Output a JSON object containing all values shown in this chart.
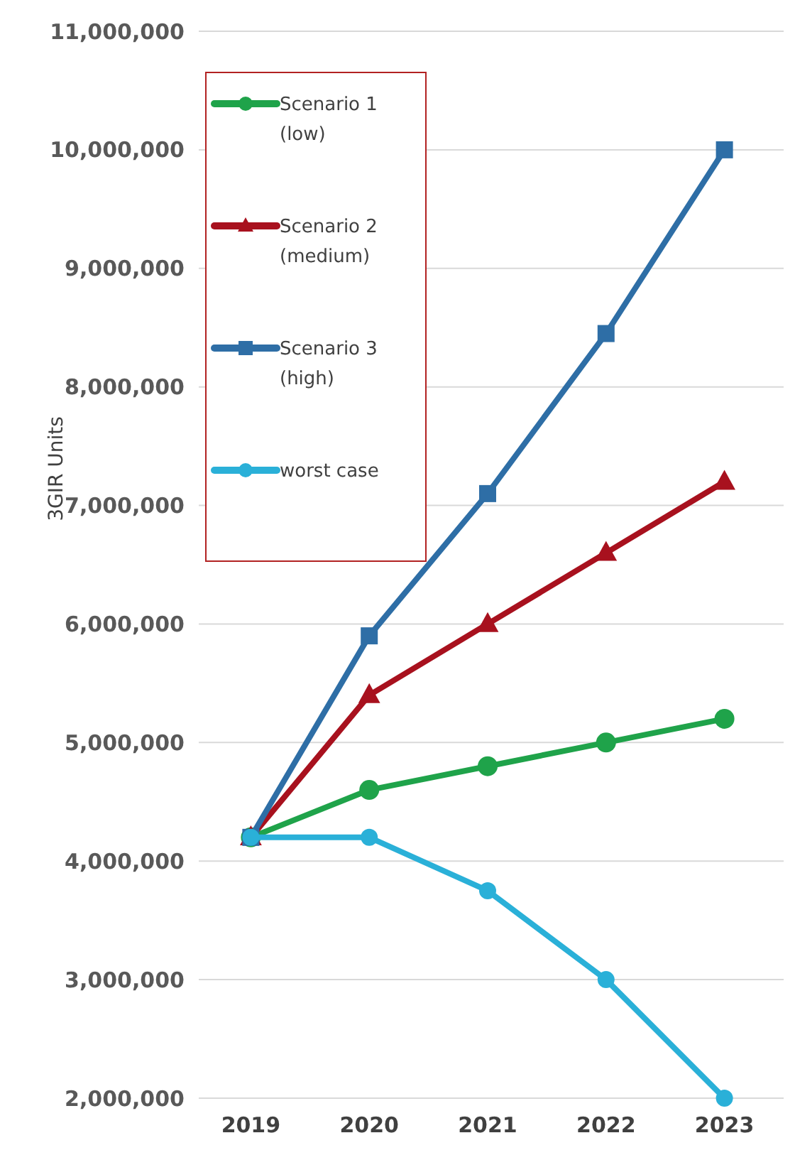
{
  "chart_data": {
    "type": "line",
    "ylabel": "3GIR Units",
    "categories": [
      "2019",
      "2020",
      "2021",
      "2022",
      "2023"
    ],
    "series": [
      {
        "name": "Scenario 1 (low)",
        "color": "#1fa34a",
        "marker": "circle",
        "values": [
          4200000,
          4600000,
          4800000,
          5000000,
          5200000
        ]
      },
      {
        "name": "Scenario 2 (medium)",
        "color": "#a8111e",
        "marker": "triangle",
        "values": [
          4200000,
          5400000,
          6000000,
          6600000,
          7200000
        ]
      },
      {
        "name": "Scenario 3 (high)",
        "color": "#2e6ea6",
        "marker": "square",
        "values": [
          4200000,
          5900000,
          7100000,
          8450000,
          10000000
        ]
      },
      {
        "name": "worst case",
        "color": "#2ab0d8",
        "marker": "circle",
        "values": [
          4200000,
          4200000,
          3750000,
          3000000,
          2000000
        ]
      }
    ],
    "ylim": [
      2000000,
      11000000
    ],
    "yticks": [
      {
        "value": 2000000,
        "label": "2,000,000"
      },
      {
        "value": 3000000,
        "label": "3,000,000"
      },
      {
        "value": 4000000,
        "label": "4,000,000"
      },
      {
        "value": 5000000,
        "label": "5,000,000"
      },
      {
        "value": 6000000,
        "label": "6,000,000"
      },
      {
        "value": 7000000,
        "label": "7,000,000"
      },
      {
        "value": 8000000,
        "label": "8,000,000"
      },
      {
        "value": 9000000,
        "label": "9,000,000"
      },
      {
        "value": 10000000,
        "label": "10,000,000"
      },
      {
        "value": 11000000,
        "label": "11,000,000"
      }
    ],
    "grid": "y",
    "legend": "top left"
  }
}
